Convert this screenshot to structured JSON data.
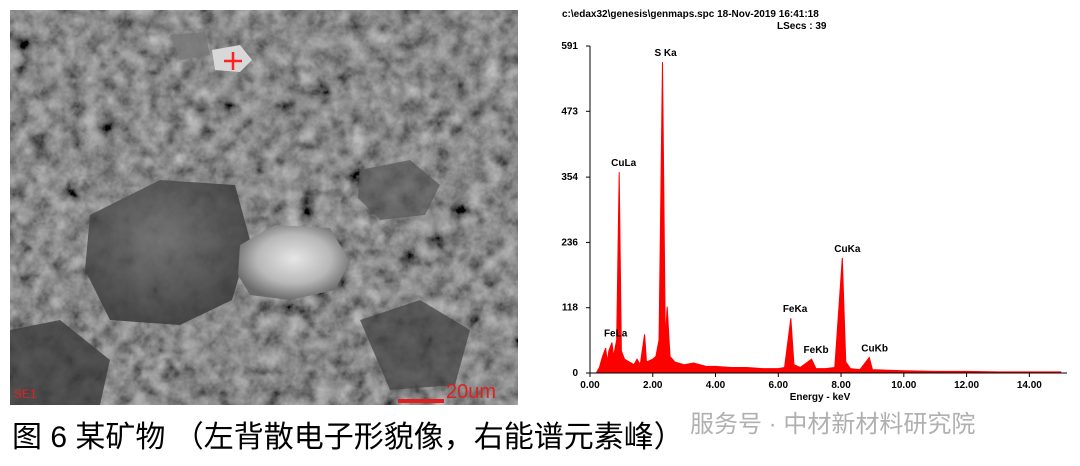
{
  "image": {
    "detector_label": "SE1",
    "scale_label": "20um"
  },
  "caption": "图 6  某矿物  （左背散电子形貌像，右能谱元素峰）",
  "watermark": "服务号 · 中材新材料研究院",
  "chart_data": {
    "type": "area",
    "header": "c:\\edax32\\genesis\\genmaps.spc  18-Nov-2019 16:41:18",
    "subheader": "LSecs : 39",
    "x_label": "Energy - keV",
    "color": "#ff0000",
    "x": [
      0.2,
      0.3,
      0.4,
      0.5,
      0.55,
      0.6,
      0.7,
      0.75,
      0.85,
      0.93,
      1.0,
      1.1,
      1.25,
      1.4,
      1.5,
      1.6,
      1.74,
      1.8,
      2.0,
      2.1,
      2.2,
      2.31,
      2.4,
      2.46,
      2.55,
      2.7,
      3.0,
      3.3,
      3.7,
      4.0,
      4.5,
      5.0,
      5.5,
      6.0,
      6.2,
      6.4,
      6.5,
      6.7,
      7.06,
      7.2,
      7.5,
      7.8,
      8.04,
      8.15,
      8.3,
      8.6,
      8.9,
      9.0,
      9.5,
      10.0,
      11.0,
      12.0,
      13.0,
      14.0,
      15.0
    ],
    "values": [
      0,
      10,
      30,
      45,
      20,
      40,
      55,
      30,
      60,
      363,
      40,
      25,
      20,
      15,
      25,
      15,
      70,
      20,
      25,
      30,
      60,
      562,
      60,
      120,
      30,
      20,
      15,
      18,
      12,
      12,
      10,
      10,
      8,
      8,
      10,
      99,
      15,
      10,
      25,
      8,
      8,
      10,
      208,
      20,
      8,
      6,
      28,
      6,
      5,
      4,
      3,
      3,
      2,
      2,
      2
    ],
    "annotations": [
      {
        "text": "S Ka",
        "x": 2.31,
        "y": 562
      },
      {
        "text": "CuLa",
        "x": 0.93,
        "y": 363
      },
      {
        "text": "FeLa",
        "x": 0.7,
        "y": 55
      },
      {
        "text": "FeKa",
        "x": 6.4,
        "y": 99
      },
      {
        "text": "FeKb",
        "x": 7.06,
        "y": 25
      },
      {
        "text": "CuKa",
        "x": 8.04,
        "y": 208
      },
      {
        "text": "CuKb",
        "x": 8.9,
        "y": 28
      }
    ],
    "xlim": [
      0,
      15.2
    ],
    "ylim": [
      0,
      591
    ],
    "xticks": [
      {
        "value": 0,
        "label": "0.00"
      },
      {
        "value": 2,
        "label": "2.00"
      },
      {
        "value": 4,
        "label": "4.00"
      },
      {
        "value": 6,
        "label": "6.00"
      },
      {
        "value": 8,
        "label": "8.00"
      },
      {
        "value": 10,
        "label": "10.00"
      },
      {
        "value": 12,
        "label": "12.00"
      },
      {
        "value": 14,
        "label": "14.00"
      }
    ],
    "yticks": [
      0,
      118,
      236,
      354,
      473,
      591
    ]
  }
}
